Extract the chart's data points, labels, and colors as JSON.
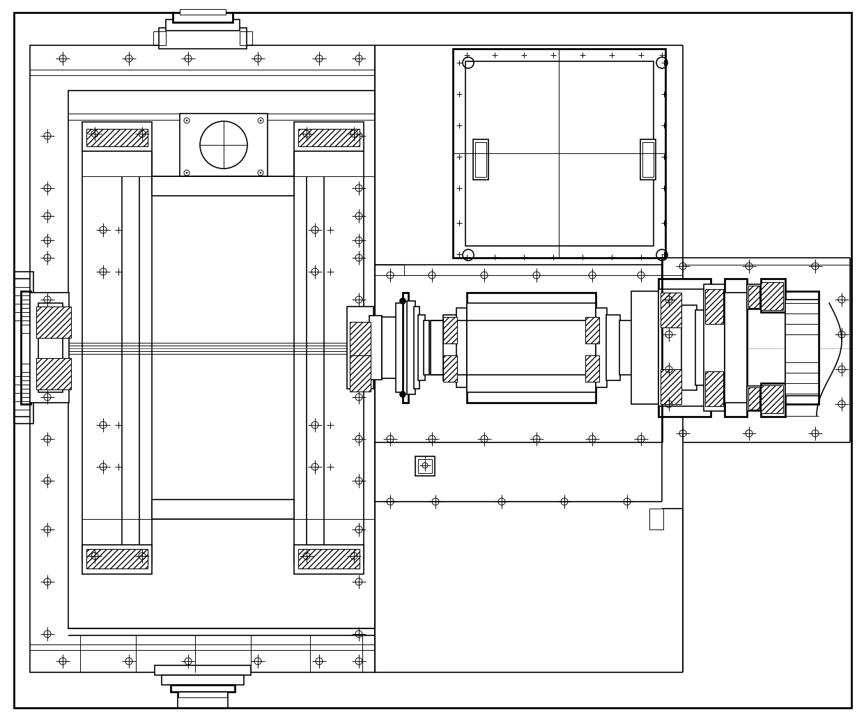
{
  "bg_color": "#ffffff",
  "line_color": "#000000",
  "fig_width": 12.4,
  "fig_height": 10.32,
  "dpi": 100
}
